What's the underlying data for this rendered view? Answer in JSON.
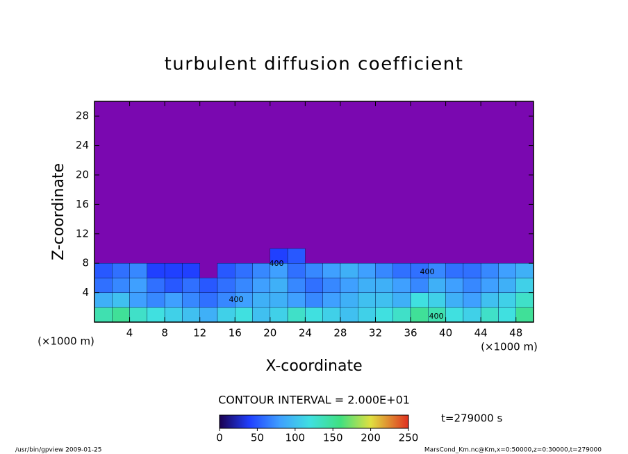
{
  "chart_data": {
    "type": "contour",
    "title": "turbulent diffusion coefficient",
    "xlabel": "X-coordinate",
    "ylabel": "Z-coordinate",
    "x_unit_label": "(×1000 m)",
    "y_unit_label": "(×1000 m)",
    "xlim": [
      0,
      50
    ],
    "ylim": [
      0,
      30
    ],
    "xticks": [
      4,
      8,
      12,
      16,
      20,
      24,
      28,
      32,
      36,
      40,
      44,
      48
    ],
    "yticks": [
      4,
      8,
      12,
      16,
      20,
      24,
      28
    ],
    "x": [
      1,
      3,
      5,
      7,
      9,
      11,
      13,
      15,
      17,
      19,
      21,
      23,
      25,
      27,
      29,
      31,
      33,
      35,
      37,
      39,
      41,
      43,
      45,
      47,
      49
    ],
    "y": [
      1,
      3,
      5,
      7,
      9
    ],
    "z": [
      [
        140,
        150,
        130,
        120,
        110,
        100,
        90,
        110,
        120,
        100,
        110,
        130,
        120,
        110,
        100,
        110,
        120,
        130,
        150,
        140,
        120,
        110,
        130,
        120,
        150
      ],
      [
        90,
        100,
        80,
        70,
        80,
        70,
        60,
        70,
        80,
        90,
        90,
        80,
        70,
        80,
        90,
        100,
        100,
        90,
        120,
        110,
        90,
        80,
        100,
        110,
        130
      ],
      [
        60,
        70,
        80,
        60,
        50,
        60,
        50,
        60,
        70,
        80,
        90,
        70,
        60,
        70,
        80,
        90,
        90,
        80,
        70,
        90,
        80,
        70,
        80,
        90,
        110
      ],
      [
        50,
        60,
        70,
        40,
        40,
        40,
        null,
        50,
        60,
        70,
        80,
        60,
        70,
        80,
        90,
        80,
        70,
        60,
        60,
        70,
        60,
        60,
        70,
        80,
        90
      ],
      [
        null,
        null,
        null,
        null,
        null,
        null,
        null,
        null,
        null,
        null,
        40,
        50,
        null,
        null,
        null,
        null,
        null,
        null,
        null,
        null,
        null,
        null,
        null,
        null,
        null
      ]
    ],
    "contour_labels": [
      "400",
      "400",
      "400",
      "400"
    ],
    "contour_interval": "CONTOUR INTERVAL = 2.000E+01",
    "colorbar_lim": [
      0,
      250
    ],
    "colorbar_ticks": [
      0,
      50,
      100,
      150,
      200,
      250
    ],
    "time_label": "t=279000 s",
    "footer_left": "/usr/bin/gpview  2009-01-25",
    "footer_right": "MarsCond_Km.nc@Km,x=0:50000,z=0:30000,t=279000"
  }
}
